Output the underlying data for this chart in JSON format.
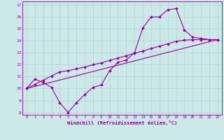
{
  "title": "",
  "xlabel": "Windchill (Refroidissement éolien,°C)",
  "bg_color": "#cde8e8",
  "line_color": "#990099",
  "grid_color": "#aacccc",
  "x_min": 0,
  "x_max": 23,
  "y_min": 8,
  "y_max": 17,
  "line1_x": [
    0,
    1,
    2,
    3,
    4,
    5,
    6,
    7,
    8,
    9,
    10,
    11,
    12,
    13,
    14,
    15,
    16,
    17,
    18,
    19,
    20,
    21,
    22,
    23
  ],
  "line1_y": [
    10.0,
    10.8,
    10.5,
    10.1,
    8.8,
    8.0,
    8.8,
    9.5,
    10.1,
    10.3,
    11.5,
    12.2,
    12.4,
    13.0,
    15.1,
    16.0,
    16.0,
    16.6,
    16.7,
    14.9,
    14.3,
    14.2,
    14.1,
    14.1
  ],
  "line2_x": [
    0,
    1,
    2,
    3,
    4,
    5,
    6,
    7,
    8,
    9,
    10,
    11,
    12,
    13,
    14,
    15,
    16,
    17,
    18,
    19,
    20,
    21,
    22,
    23
  ],
  "line2_y": [
    10.0,
    10.35,
    10.7,
    11.05,
    11.4,
    11.5,
    11.65,
    11.8,
    12.0,
    12.15,
    12.35,
    12.55,
    12.75,
    12.95,
    13.15,
    13.35,
    13.55,
    13.75,
    13.95,
    14.05,
    14.1,
    14.1,
    14.1,
    14.1
  ],
  "line3_x": [
    0,
    23
  ],
  "line3_y": [
    10.0,
    14.1
  ]
}
